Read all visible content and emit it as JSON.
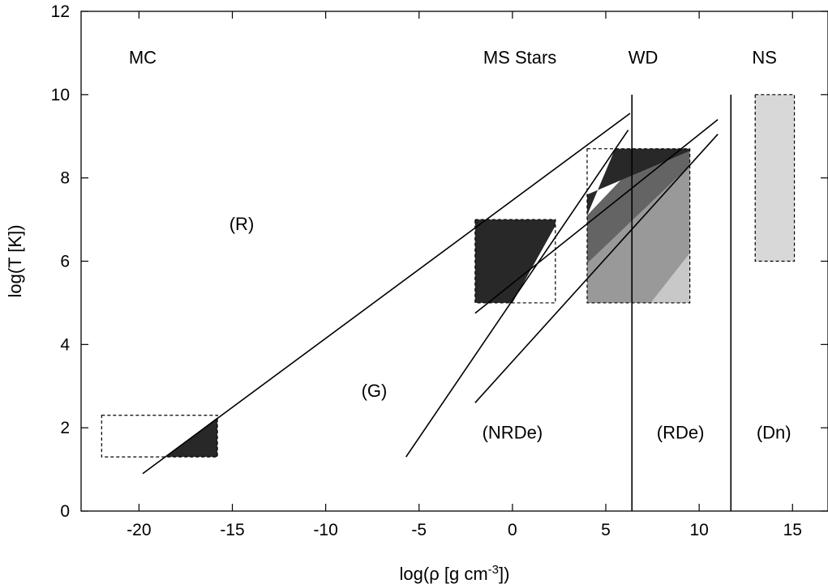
{
  "chart_data": {
    "type": "region-diagram",
    "xlabel": {
      "main": "log(ρ [g cm",
      "sup": "-3",
      "end": "])"
    },
    "ylabel": "log(T [K])",
    "xlim": [
      -23.1,
      16.9
    ],
    "ylim": [
      0,
      12
    ],
    "xticks": [
      -20,
      -15,
      -10,
      -5,
      0,
      5,
      10,
      15
    ],
    "yticks": [
      0,
      2,
      4,
      6,
      8,
      10,
      12
    ],
    "grid": false,
    "colors": {
      "dark": "#282828",
      "mid": "#646464",
      "light": "#999999",
      "pale": "#c8c8c8",
      "ns": "#d8d8d8"
    },
    "object_labels": [
      {
        "text": "MC",
        "x": -19.8,
        "y": 10.9
      },
      {
        "text": "MS Stars",
        "x": 0.4,
        "y": 10.9
      },
      {
        "text": "WD",
        "x": 7.0,
        "y": 10.9
      },
      {
        "text": "NS",
        "x": 13.5,
        "y": 10.9
      }
    ],
    "region_labels": [
      {
        "text": "(R)",
        "x": -14.5,
        "y": 6.9
      },
      {
        "text": "(G)",
        "x": -7.4,
        "y": 2.9
      },
      {
        "text": "(NRDe)",
        "x": 0.0,
        "y": 1.9
      },
      {
        "text": "(RDe)",
        "x": 9.0,
        "y": 1.9
      },
      {
        "text": "(Dn)",
        "x": 14.0,
        "y": 1.9
      }
    ],
    "boxes": [
      {
        "name": "molecular-clouds",
        "x": [
          -22,
          -15.8
        ],
        "y": [
          1.3,
          2.3
        ]
      },
      {
        "name": "main-sequence-stars",
        "x": [
          -2,
          2.3
        ],
        "y": [
          5,
          7
        ]
      },
      {
        "name": "white-dwarfs",
        "x": [
          4,
          9.5
        ],
        "y": [
          5,
          8.7
        ]
      },
      {
        "name": "neutron-stars",
        "x": [
          13,
          15.1
        ],
        "y": [
          6,
          10
        ]
      }
    ],
    "lines": [
      {
        "name": "radiation-gas-boundary",
        "points": [
          [
            -19.8,
            0.9
          ],
          [
            6.3,
            9.55
          ]
        ]
      },
      {
        "name": "gas-degenerate-boundary",
        "points": [
          [
            -5.7,
            1.3
          ],
          [
            6.2,
            9.15
          ]
        ]
      },
      {
        "name": "degenerate-boundary-1",
        "points": [
          [
            -2.0,
            2.6
          ],
          [
            11.0,
            9.05
          ]
        ]
      },
      {
        "name": "degenerate-boundary-2",
        "points": [
          [
            -2.0,
            4.75
          ],
          [
            11.0,
            9.4
          ]
        ]
      },
      {
        "name": "relativistic-boundary",
        "points": [
          [
            6.4,
            0
          ],
          [
            6.4,
            10
          ]
        ]
      },
      {
        "name": "neutron-boundary",
        "points": [
          [
            11.7,
            0
          ],
          [
            11.7,
            10
          ]
        ]
      }
    ],
    "fills": [
      {
        "name": "mc-fill",
        "color": "dark",
        "points": [
          [
            -18.6,
            1.3
          ],
          [
            -15.8,
            1.3
          ],
          [
            -15.8,
            2.25
          ]
        ]
      },
      {
        "name": "ms-fill",
        "color": "dark",
        "points": [
          [
            -2,
            5
          ],
          [
            0.0,
            5
          ],
          [
            2.3,
            6.85
          ],
          [
            2.3,
            7
          ],
          [
            -2,
            7
          ]
        ]
      },
      {
        "name": "wd-mid",
        "color": "mid",
        "points": [
          [
            4,
            5
          ],
          [
            9.5,
            5
          ],
          [
            9.5,
            8.7
          ],
          [
            7.4,
            8.7
          ],
          [
            4,
            7.1
          ]
        ]
      },
      {
        "name": "wd-dark",
        "color": "dark",
        "points": [
          [
            4,
            7.1
          ],
          [
            5.5,
            8.7
          ],
          [
            9.5,
            8.7
          ],
          [
            9.5,
            8.65
          ],
          [
            4,
            7.6
          ]
        ]
      },
      {
        "name": "wd-light",
        "color": "light",
        "points": [
          [
            4,
            5
          ],
          [
            7.4,
            5
          ],
          [
            9.5,
            6.2
          ],
          [
            9.5,
            8.3
          ],
          [
            4,
            5.95
          ]
        ]
      },
      {
        "name": "wd-pale",
        "color": "pale",
        "points": [
          [
            7.4,
            5
          ],
          [
            9.5,
            5
          ],
          [
            9.5,
            6.2
          ]
        ]
      },
      {
        "name": "ns-fill",
        "color": "ns",
        "points": [
          [
            13,
            6
          ],
          [
            15.1,
            6
          ],
          [
            15.1,
            10
          ],
          [
            13,
            10
          ]
        ]
      }
    ]
  }
}
